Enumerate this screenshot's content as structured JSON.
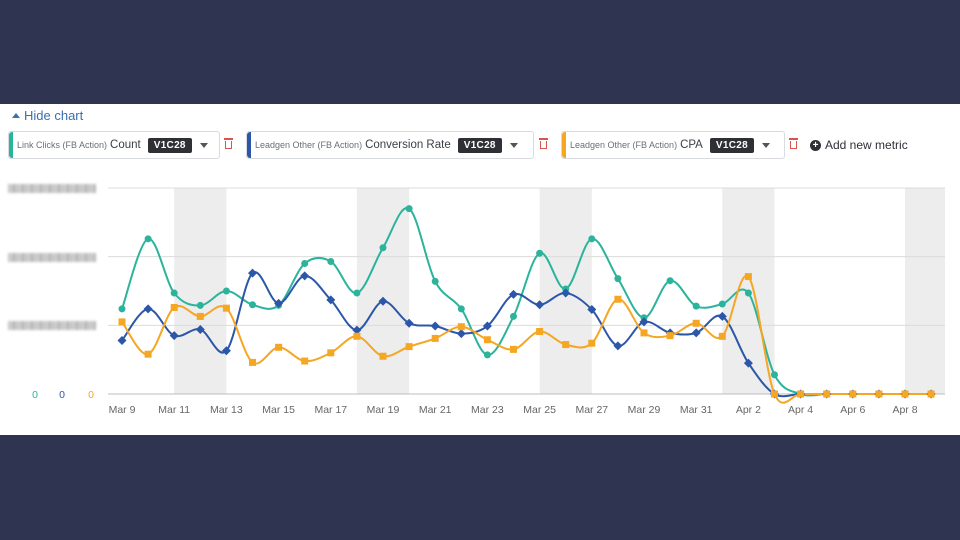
{
  "toggle": {
    "label": "Hide chart"
  },
  "metrics": [
    {
      "prefix": "Link Clicks (FB Action)",
      "name": "Count",
      "badge": "V1C28",
      "color": "#2bb39b"
    },
    {
      "prefix": "Leadgen Other (FB Action)",
      "name": "Conversion Rate",
      "badge": "V1C28",
      "color": "#2c57a8"
    },
    {
      "prefix": "Leadgen Other (FB Action)",
      "name": "CPA",
      "badge": "V1C28",
      "color": "#f5a623"
    }
  ],
  "add_metric": {
    "label": "Add new metric"
  },
  "zero_labels": [
    "0",
    "0",
    "0"
  ],
  "chart_data": {
    "type": "line",
    "categories": [
      "Mar 9",
      "Mar 10",
      "Mar 11",
      "Mar 12",
      "Mar 13",
      "Mar 14",
      "Mar 15",
      "Mar 16",
      "Mar 17",
      "Mar 18",
      "Mar 19",
      "Mar 20",
      "Mar 21",
      "Mar 22",
      "Mar 23",
      "Mar 24",
      "Mar 25",
      "Mar 26",
      "Mar 27",
      "Mar 28",
      "Mar 29",
      "Mar 30",
      "Mar 31",
      "Apr 1",
      "Apr 2",
      "Apr 3",
      "Apr 4",
      "Apr 5",
      "Apr 6",
      "Apr 7",
      "Apr 8",
      "Apr 9"
    ],
    "tick_labels": [
      "Mar 9",
      "Mar 11",
      "Mar 13",
      "Mar 15",
      "Mar 17",
      "Mar 19",
      "Mar 21",
      "Mar 23",
      "Mar 25",
      "Mar 27",
      "Mar 29",
      "Mar 31",
      "Apr 2",
      "Apr 4",
      "Apr 6",
      "Apr 8"
    ],
    "shaded_indices": [
      3,
      10,
      17,
      24,
      31
    ],
    "ylim": [
      0,
      3
    ],
    "series": [
      {
        "values": [
          1.24,
          2.26,
          1.47,
          1.29,
          1.5,
          1.3,
          1.29,
          1.9,
          1.93,
          1.47,
          2.13,
          2.7,
          1.64,
          1.24,
          0.57,
          1.13,
          2.05,
          1.53,
          2.26,
          1.68,
          1.11,
          1.65,
          1.28,
          1.31,
          1.47,
          0.28,
          0,
          0,
          0,
          0,
          0,
          0
        ]
      },
      {
        "values": [
          0.78,
          1.24,
          0.85,
          0.94,
          0.63,
          1.76,
          1.32,
          1.72,
          1.37,
          0.93,
          1.35,
          1.03,
          0.99,
          0.88,
          0.99,
          1.45,
          1.3,
          1.47,
          1.23,
          0.7,
          1.05,
          0.89,
          0.89,
          1.13,
          0.45,
          0,
          0,
          0,
          0,
          0,
          0,
          0
        ]
      },
      {
        "values": [
          1.05,
          0.58,
          1.26,
          1.13,
          1.25,
          0.46,
          0.68,
          0.48,
          0.6,
          0.84,
          0.55,
          0.69,
          0.81,
          0.98,
          0.79,
          0.65,
          0.91,
          0.72,
          0.74,
          1.38,
          0.89,
          0.85,
          1.03,
          0.84,
          1.71,
          0,
          0,
          0,
          0,
          0,
          0,
          0
        ]
      }
    ]
  }
}
